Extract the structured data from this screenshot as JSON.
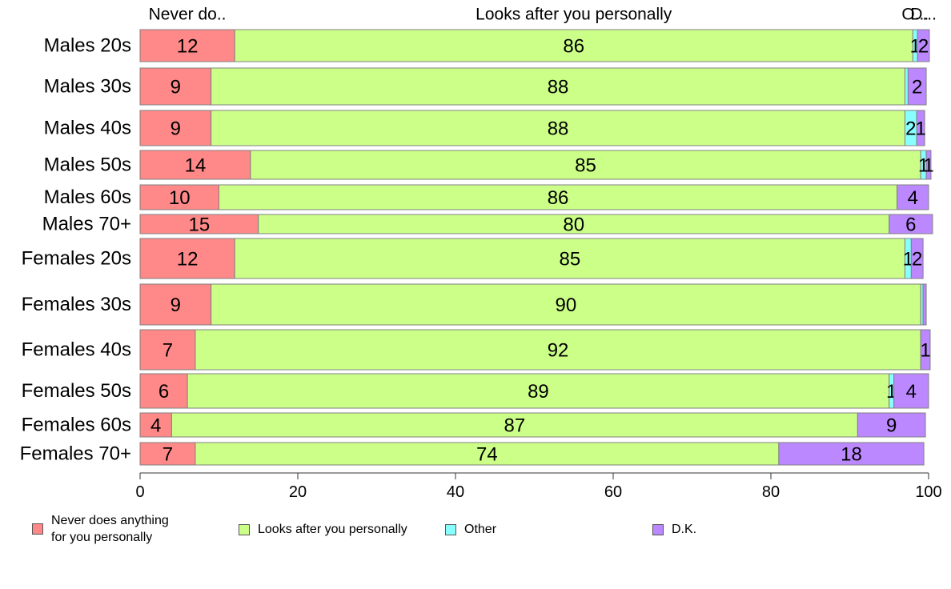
{
  "chart_data": {
    "type": "bar",
    "orientation": "horizontal",
    "stacked": true,
    "categories": [
      "Males 20s",
      "Males 30s",
      "Males 40s",
      "Males 50s",
      "Males 60s",
      "Males 70+",
      "Females 20s",
      "Females 30s",
      "Females 40s",
      "Females 50s",
      "Females 60s",
      "Females 70+"
    ],
    "series": [
      {
        "name": "Never does anything\nfor you personally",
        "short_label": "Never do..",
        "color": "#ff8888",
        "values": [
          12,
          9,
          9,
          14,
          10,
          15,
          12,
          9,
          7,
          6,
          4,
          7
        ],
        "labels": [
          "12",
          "9",
          "9",
          "14",
          "10",
          "15",
          "12",
          "9",
          "7",
          "6",
          "4",
          "7"
        ]
      },
      {
        "name": "Looks after you personally",
        "short_label": "Looks after you personally",
        "color": "#ccff88",
        "values": [
          86,
          88,
          88,
          85,
          86,
          80,
          85,
          90,
          92,
          89,
          87,
          74
        ],
        "labels": [
          "86",
          "88",
          "88",
          "85",
          "86",
          "80",
          "85",
          "90",
          "92",
          "89",
          "87",
          "74"
        ]
      },
      {
        "name": "Other",
        "short_label": "O...",
        "color": "#88ffff",
        "values": [
          0.6,
          0.4,
          1.5,
          0.7,
          0,
          0,
          0.8,
          0.3,
          0,
          0.6,
          0,
          0
        ],
        "labels": [
          "1",
          "",
          "2",
          "1",
          "",
          "",
          "1",
          "",
          "",
          "1",
          "",
          ""
        ]
      },
      {
        "name": "D.K.",
        "short_label": "D...",
        "color": "#bb88ff",
        "values": [
          1.5,
          2.3,
          1.0,
          0.6,
          4,
          5.5,
          1.5,
          0.4,
          1.2,
          4.4,
          8.6,
          18.4
        ],
        "labels": [
          "2",
          "2",
          "1",
          "1",
          "4",
          "6",
          "2",
          "",
          "1",
          "4",
          "9",
          "18"
        ]
      }
    ],
    "xlim": [
      0,
      100
    ],
    "xticks": [
      "0",
      "20",
      "40",
      "60",
      "80",
      "100"
    ],
    "legend_position": "bottom",
    "grid": false
  }
}
